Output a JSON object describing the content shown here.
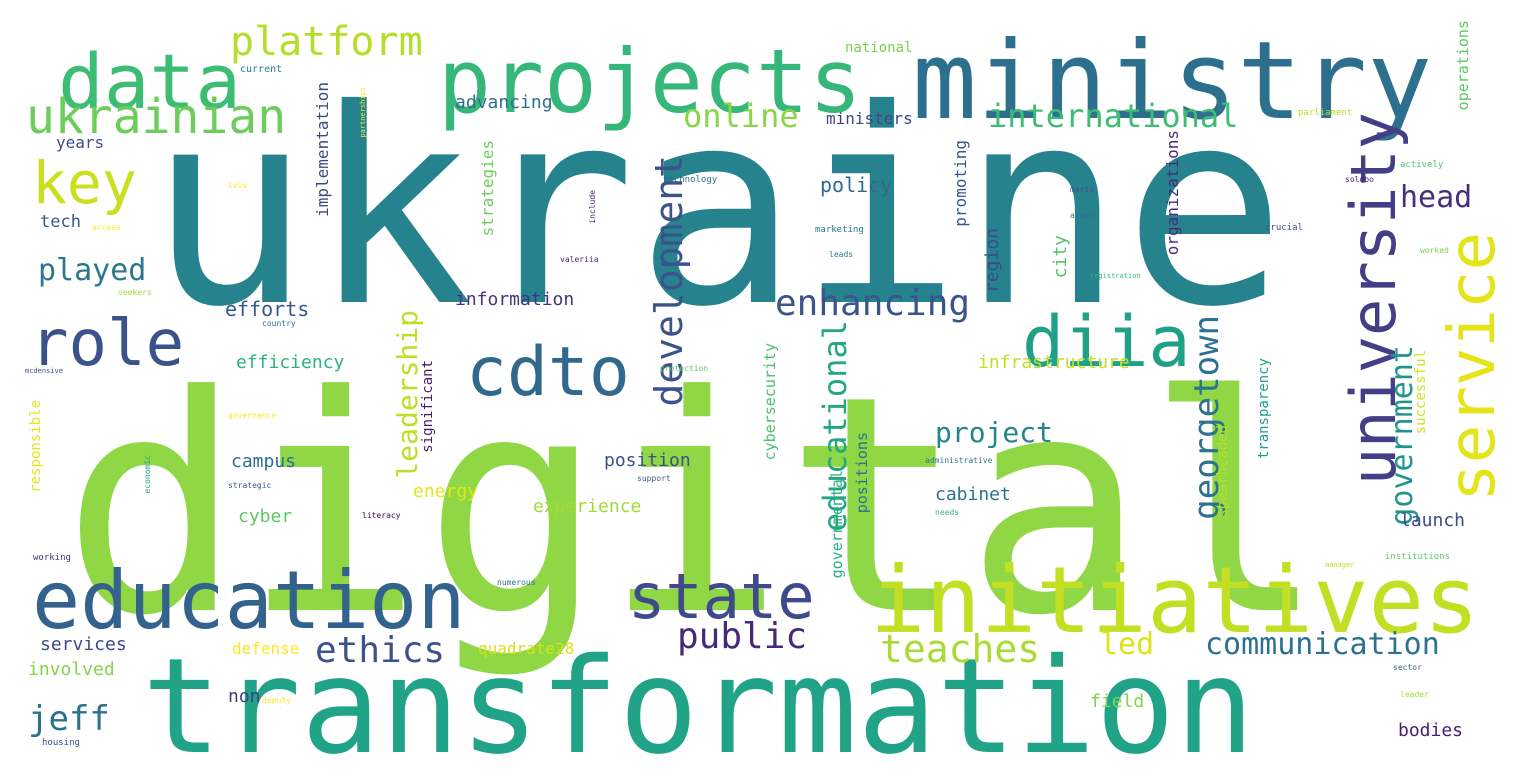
{
  "word_cloud": {
    "words": [
      {
        "text": "ukraine",
        "color": "#26838e"
      },
      {
        "text": "digital",
        "color": "#8fd744"
      },
      {
        "text": "transformation",
        "color": "#20a386"
      },
      {
        "text": "ministry",
        "color": "#2d708e"
      },
      {
        "text": "projects",
        "color": "#35b779"
      },
      {
        "text": "initiatives",
        "color": "#c2df23"
      },
      {
        "text": "education",
        "color": "#33628d"
      },
      {
        "text": "data",
        "color": "#3dbc74"
      },
      {
        "text": "ukrainian",
        "color": "#6ccd5a"
      },
      {
        "text": "state",
        "color": "#3e4a89"
      },
      {
        "text": "cdto",
        "color": "#31688e"
      },
      {
        "text": "university",
        "color": "#433e85"
      },
      {
        "text": "service",
        "color": "#e5e419"
      },
      {
        "text": "diia",
        "color": "#1fa187"
      },
      {
        "text": "role",
        "color": "#3b528b"
      },
      {
        "text": "key",
        "color": "#c8e020"
      },
      {
        "text": "platform",
        "color": "#b5de2b"
      },
      {
        "text": "development",
        "color": "#3b528b"
      },
      {
        "text": "georgetown",
        "color": "#2c728e"
      },
      {
        "text": "government",
        "color": "#1f958b"
      },
      {
        "text": "enhancing",
        "color": "#3a548c"
      },
      {
        "text": "ethics",
        "color": "#3b528b"
      },
      {
        "text": "public",
        "color": "#482878"
      },
      {
        "text": "teaches",
        "color": "#a8db34"
      },
      {
        "text": "communication",
        "color": "#2d718e"
      },
      {
        "text": "led",
        "color": "#dde318"
      },
      {
        "text": "international",
        "color": "#3dbc74"
      },
      {
        "text": "online",
        "color": "#8bd646"
      },
      {
        "text": "educational",
        "color": "#22a785"
      },
      {
        "text": "project",
        "color": "#25848e"
      },
      {
        "text": "head",
        "color": "#472f7d"
      },
      {
        "text": "played",
        "color": "#2a778e"
      },
      {
        "text": "leadership",
        "color": "#bddf26"
      },
      {
        "text": "jeff",
        "color": "#2c728e"
      },
      {
        "text": "efforts",
        "color": "#38598c"
      },
      {
        "text": "efficiency",
        "color": "#2db27d"
      },
      {
        "text": "information",
        "color": "#46327e"
      },
      {
        "text": "infrastructure",
        "color": "#c2df23"
      },
      {
        "text": "policy",
        "color": "#31688e"
      },
      {
        "text": "implementation",
        "color": "#414487"
      },
      {
        "text": "strategies",
        "color": "#6ccd5a"
      },
      {
        "text": "promoting",
        "color": "#3a548c"
      },
      {
        "text": "region",
        "color": "#3e4a89"
      },
      {
        "text": "organizations",
        "color": "#472c7a"
      },
      {
        "text": "city",
        "color": "#52c569"
      },
      {
        "text": "advancing",
        "color": "#2e6f8e"
      },
      {
        "text": "ministers",
        "color": "#414487"
      },
      {
        "text": "national",
        "color": "#7ad151"
      },
      {
        "text": "operations",
        "color": "#5ec962"
      },
      {
        "text": "years",
        "color": "#3e4c8a"
      },
      {
        "text": "tech",
        "color": "#365c8d"
      },
      {
        "text": "position",
        "color": "#3b518b"
      },
      {
        "text": "cyber",
        "color": "#5ec962"
      },
      {
        "text": "campus",
        "color": "#2d708e"
      },
      {
        "text": "energy",
        "color": "#e5e419"
      },
      {
        "text": "experience",
        "color": "#a0da39"
      },
      {
        "text": "cabinet",
        "color": "#2c728e"
      },
      {
        "text": "launch",
        "color": "#3e4a89"
      },
      {
        "text": "services",
        "color": "#3e4a89"
      },
      {
        "text": "involved",
        "color": "#84d44b"
      },
      {
        "text": "defense",
        "color": "#fde725"
      },
      {
        "text": "quadrate28",
        "color": "#d8e219"
      },
      {
        "text": "non",
        "color": "#433e85"
      },
      {
        "text": "field",
        "color": "#7fd34e"
      },
      {
        "text": "bodies",
        "color": "#481f70"
      },
      {
        "text": "significant",
        "color": "#481a6c"
      },
      {
        "text": "cybersecurity",
        "color": "#4ac16d"
      },
      {
        "text": "governmental",
        "color": "#29af7f"
      },
      {
        "text": "positions",
        "color": "#2d708e"
      },
      {
        "text": "spearheaded",
        "color": "#b8de29"
      },
      {
        "text": "transparency",
        "color": "#1f9e89"
      },
      {
        "text": "successful",
        "color": "#d2e21b"
      },
      {
        "text": "responsible",
        "color": "#e7e419"
      },
      {
        "text": "current",
        "color": "#2a788e"
      },
      {
        "text": "parliament",
        "color": "#b5de2b"
      },
      {
        "text": "actively",
        "color": "#52c569"
      },
      {
        "text": "technology",
        "color": "#2e6e8e"
      },
      {
        "text": "include",
        "color": "#482475"
      },
      {
        "text": "maria",
        "color": "#39568c"
      },
      {
        "text": "aimed",
        "color": "#2c738e"
      },
      {
        "text": "soldbo",
        "color": "#482173"
      },
      {
        "text": "crucial",
        "color": "#3f4788"
      },
      {
        "text": "marketing",
        "color": "#2a788e"
      },
      {
        "text": "leads",
        "color": "#2a768e"
      },
      {
        "text": "worked",
        "color": "#7ad151"
      },
      {
        "text": "access",
        "color": "#fde725"
      },
      {
        "text": "seekers",
        "color": "#a5db36"
      },
      {
        "text": "valeriia",
        "color": "#482878"
      },
      {
        "text": "country",
        "color": "#2c728e"
      },
      {
        "text": "mcdensive",
        "color": "#3b528b"
      },
      {
        "text": "protection",
        "color": "#5ec962"
      },
      {
        "text": "governance",
        "color": "#fde725"
      },
      {
        "text": "strategic",
        "color": "#3b528b"
      },
      {
        "text": "literacy",
        "color": "#440154"
      },
      {
        "text": "administrative",
        "color": "#2a788e"
      },
      {
        "text": "support",
        "color": "#365c8d"
      },
      {
        "text": "needs",
        "color": "#35b779"
      },
      {
        "text": "numerous",
        "color": "#2d708e"
      },
      {
        "text": "working",
        "color": "#46327e"
      },
      {
        "text": "housing",
        "color": "#3e4a89"
      },
      {
        "text": "deputy",
        "color": "#fde725"
      },
      {
        "text": "leader",
        "color": "#a0da39"
      },
      {
        "text": "sector",
        "color": "#31688e"
      },
      {
        "text": "institutions",
        "color": "#5ec962"
      },
      {
        "text": "manager",
        "color": "#b5de2b"
      },
      {
        "text": "registration",
        "color": "#35b779"
      },
      {
        "text": "economic",
        "color": "#20a386"
      },
      {
        "text": "lviv",
        "color": "#fde725"
      },
      {
        "text": "partnerships",
        "color": "#fde725"
      }
    ]
  }
}
